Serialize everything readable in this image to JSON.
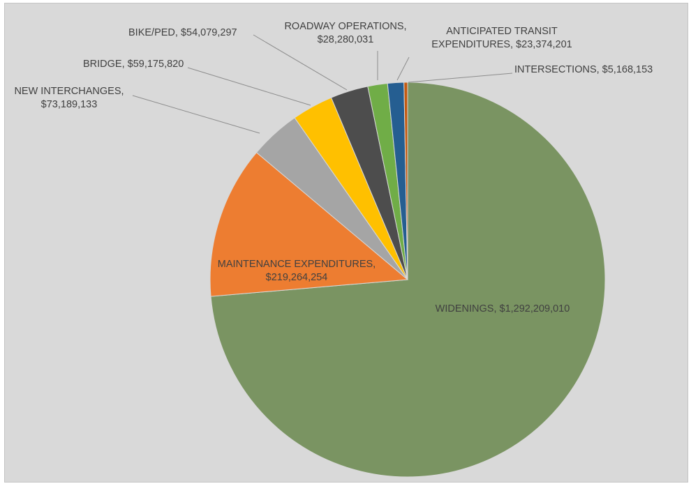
{
  "chart_data": {
    "type": "pie",
    "title": "",
    "slices": [
      {
        "name": "WIDENINGS",
        "value": 1292209010,
        "value_label": "$1,292,209,010",
        "color": "#7a9462"
      },
      {
        "name": "MAINTENANCE EXPENDITURES",
        "value": 219264254,
        "value_label": "$219,264,254",
        "color": "#ed7d31"
      },
      {
        "name": "NEW INTERCHANGES",
        "value": 73189133,
        "value_label": "$73,189,133",
        "color": "#a5a5a5"
      },
      {
        "name": "BRIDGE",
        "value": 59175820,
        "value_label": "$59,175,820",
        "color": "#ffc000"
      },
      {
        "name": "BIKE/PED",
        "value": 54079297,
        "value_label": "$54,079,297",
        "color": "#4d4d4d"
      },
      {
        "name": "ROADWAY OPERATIONS",
        "value": 28280031,
        "value_label": "$28,280,031",
        "color": "#70ad47"
      },
      {
        "name": "ANTICIPATED TRANSIT EXPENDITURES",
        "value": 23374201,
        "value_label": "$23,374,201",
        "color": "#255e91"
      },
      {
        "name": "INTERSECTIONS",
        "value": 5168153,
        "value_label": "$5,168,153",
        "color": "#c55a11"
      }
    ],
    "data_labels": [
      {
        "lines": [
          "WIDENINGS, $1,292,209,010"
        ]
      },
      {
        "lines": [
          "MAINTENANCE EXPENDITURES,",
          "$219,264,254"
        ]
      },
      {
        "lines": [
          "NEW INTERCHANGES,",
          "$73,189,133"
        ]
      },
      {
        "lines": [
          "BRIDGE, $59,175,820"
        ]
      },
      {
        "lines": [
          "BIKE/PED, $54,079,297"
        ]
      },
      {
        "lines": [
          "ROADWAY OPERATIONS,",
          "$28,280,031"
        ]
      },
      {
        "lines": [
          "ANTICIPATED TRANSIT",
          "EXPENDITURES, $23,374,201"
        ]
      },
      {
        "lines": [
          "INTERSECTIONS, $5,168,153"
        ]
      }
    ],
    "start_angle_deg": 0,
    "direction": "clockwise",
    "legend": "none",
    "background_color": "#d9d9d9"
  }
}
